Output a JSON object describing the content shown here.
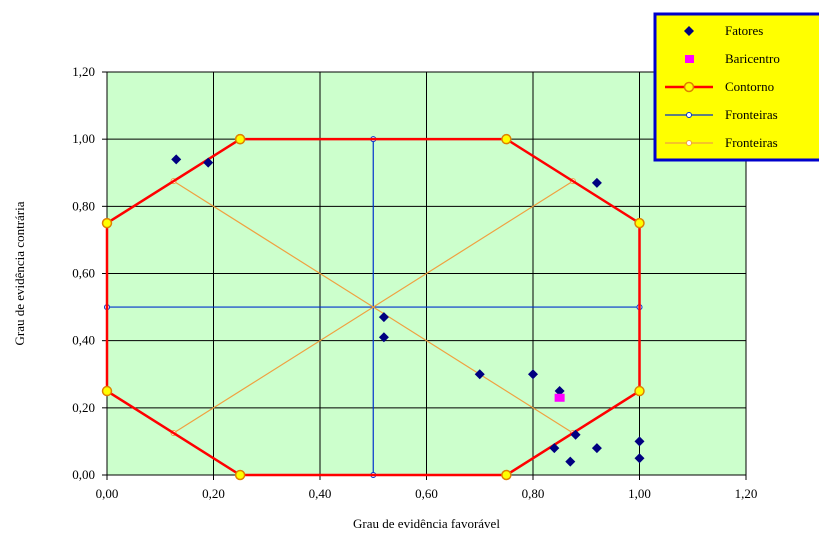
{
  "chart_data": {
    "type": "scatter",
    "xlabel": "Grau de evidência favorável",
    "ylabel": "Grau de evidência contrária",
    "xlim": [
      0,
      1.2
    ],
    "ylim": [
      0,
      1.2
    ],
    "x_ticks": [
      "0,00",
      "0,20",
      "0,40",
      "0,60",
      "0,80",
      "1,00",
      "1,20"
    ],
    "y_ticks": [
      "0,00",
      "0,20",
      "0,40",
      "0,60",
      "0,80",
      "1,00",
      "1,20"
    ],
    "grid": true,
    "legend_position": "top-right",
    "plot_background": "#ccffcc",
    "series": [
      {
        "name": "Fatores",
        "kind": "scatter",
        "marker": "diamond",
        "color": "#000080",
        "points": [
          [
            0.13,
            0.94
          ],
          [
            0.19,
            0.93
          ],
          [
            0.92,
            0.87
          ],
          [
            0.52,
            0.47
          ],
          [
            0.52,
            0.41
          ],
          [
            0.7,
            0.3
          ],
          [
            0.8,
            0.3
          ],
          [
            0.85,
            0.25
          ],
          [
            0.84,
            0.08
          ],
          [
            0.88,
            0.12
          ],
          [
            0.87,
            0.04
          ],
          [
            0.92,
            0.08
          ],
          [
            1.0,
            0.1
          ],
          [
            1.0,
            0.05
          ]
        ]
      },
      {
        "name": "Baricentro",
        "kind": "scatter",
        "marker": "square",
        "color": "#ff00ff",
        "points": [
          [
            0.85,
            0.23
          ]
        ]
      },
      {
        "name": "Contorno",
        "kind": "line",
        "marker": "circle",
        "color": "#ff0000",
        "marker_fill": "#ffff00",
        "marker_stroke": "#e08000",
        "points": [
          [
            0.25,
            1.0
          ],
          [
            0.75,
            1.0
          ],
          [
            1.0,
            0.75
          ],
          [
            1.0,
            0.25
          ],
          [
            0.75,
            0.0
          ],
          [
            0.25,
            0.0
          ],
          [
            0.0,
            0.25
          ],
          [
            0.0,
            0.75
          ],
          [
            0.25,
            1.0
          ]
        ]
      },
      {
        "name": "Fronteiras",
        "kind": "segments",
        "marker": "small-circle",
        "color": "#0033cc",
        "segments": [
          [
            [
              0.0,
              0.5
            ],
            [
              1.0,
              0.5
            ]
          ],
          [
            [
              0.5,
              0.0
            ],
            [
              0.5,
              1.0
            ]
          ]
        ]
      },
      {
        "name": "Fronteiras",
        "kind": "segments",
        "marker": "small-circle",
        "color": "#f0a040",
        "segments": [
          [
            [
              0.125,
              0.875
            ],
            [
              0.875,
              0.125
            ]
          ],
          [
            [
              0.125,
              0.125
            ],
            [
              0.875,
              0.875
            ]
          ]
        ]
      }
    ]
  }
}
